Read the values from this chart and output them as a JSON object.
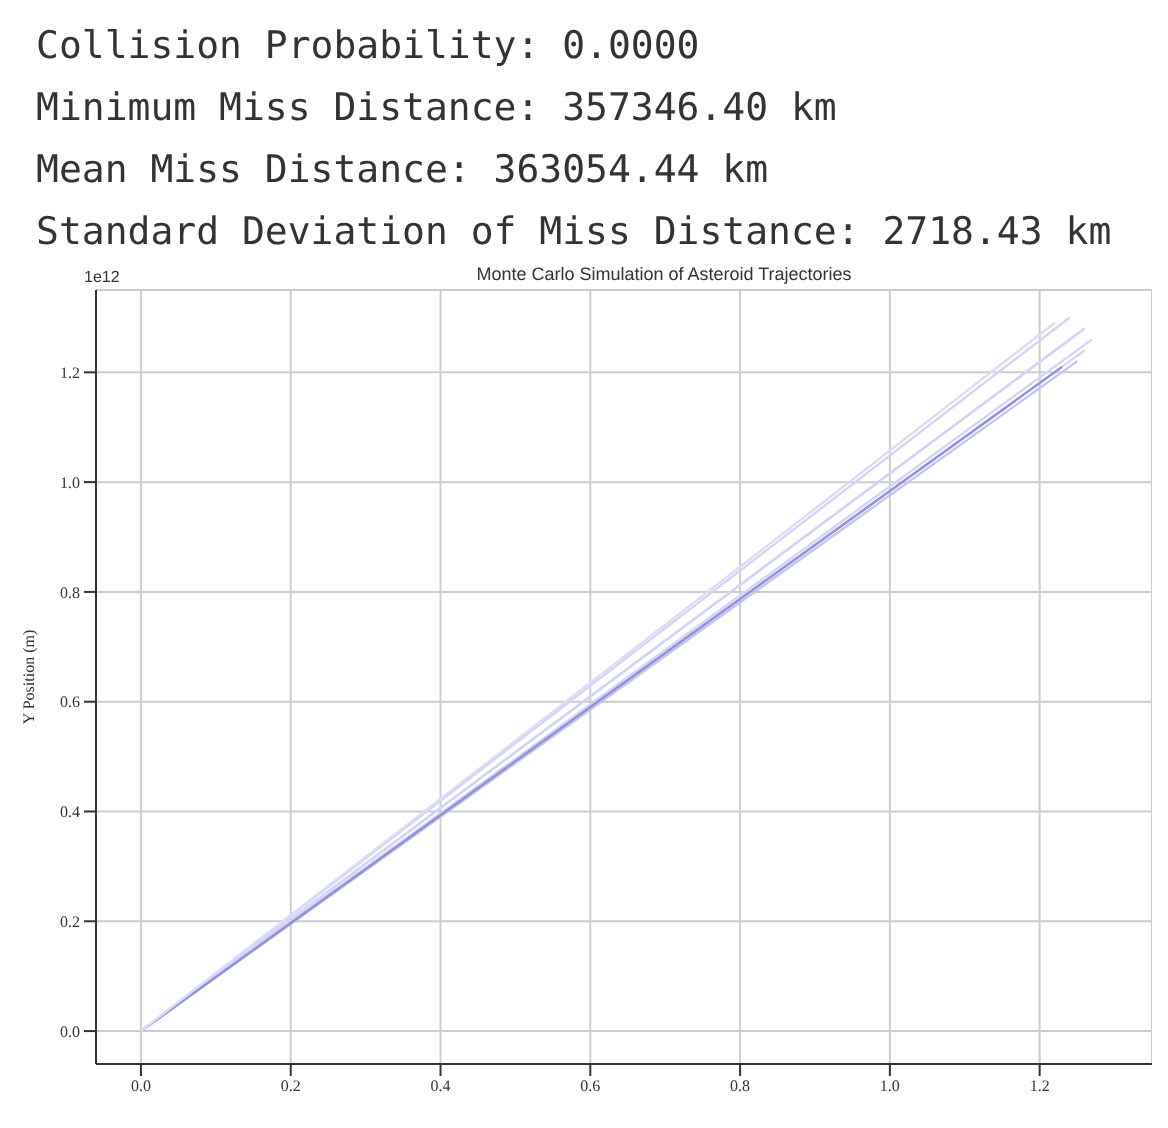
{
  "chart_data": {
    "type": "line",
    "title": "Monte Carlo Simulation of Asteroid Trajectories",
    "ylabel": "Y Position (m)",
    "annotations": [
      "Collision Probability: 0.0000",
      "Minimum Miss Distance: 357346.40 km",
      "Mean Miss Distance: 363054.44 km",
      "Standard Deviation of Miss Distance: 2718.43 km",
      "1e12"
    ],
    "xlim": [
      -0.06,
      1.35
    ],
    "xticks": [
      {
        "value": 0,
        "label": "0.0"
      },
      {
        "value": 0.2,
        "label": "0.2"
      },
      {
        "value": 0.4,
        "label": "0.4"
      },
      {
        "value": 0.6,
        "label": "0.6"
      },
      {
        "value": 0.8,
        "label": "0.8"
      },
      {
        "value": 1,
        "label": "1.0"
      },
      {
        "value": 1.2,
        "label": "1.2"
      }
    ],
    "ylim": [
      -0.06,
      1.35
    ],
    "yticks": [
      {
        "value": 0,
        "label": "0.0"
      },
      {
        "value": 0.2,
        "label": "0.2"
      },
      {
        "value": 0.4,
        "label": "0.4"
      },
      {
        "value": 0.6,
        "label": "0.6"
      },
      {
        "value": 0.8,
        "label": "0.8"
      },
      {
        "value": 1,
        "label": "1.0"
      },
      {
        "value": 1.2,
        "label": "1.2"
      }
    ],
    "grid": true,
    "series": [
      {
        "color": "#d4d4f4",
        "x": [
          0,
          1.24
        ],
        "values": [
          0,
          1.3
        ]
      },
      {
        "color": "#d4d4f4",
        "x": [
          0,
          1.26
        ],
        "values": [
          0,
          1.28
        ]
      },
      {
        "color": "#d4d4f4",
        "x": [
          0,
          1.27
        ],
        "values": [
          0,
          1.26
        ]
      },
      {
        "color": "#d4d4f4",
        "x": [
          0,
          1.25
        ],
        "values": [
          0,
          1.27
        ]
      },
      {
        "color": "#d4d4f4",
        "x": [
          0,
          1.26
        ],
        "values": [
          0,
          1.24
        ]
      },
      {
        "color": "#c4c4ee",
        "x": [
          0,
          1.25
        ],
        "values": [
          0,
          1.22
        ]
      },
      {
        "color": "#9090dc",
        "x": [
          0,
          1.23
        ],
        "values": [
          0,
          1.21
        ]
      },
      {
        "color": "#dcdcf6",
        "x": [
          0,
          1.22
        ],
        "values": [
          0,
          1.29
        ]
      }
    ]
  }
}
